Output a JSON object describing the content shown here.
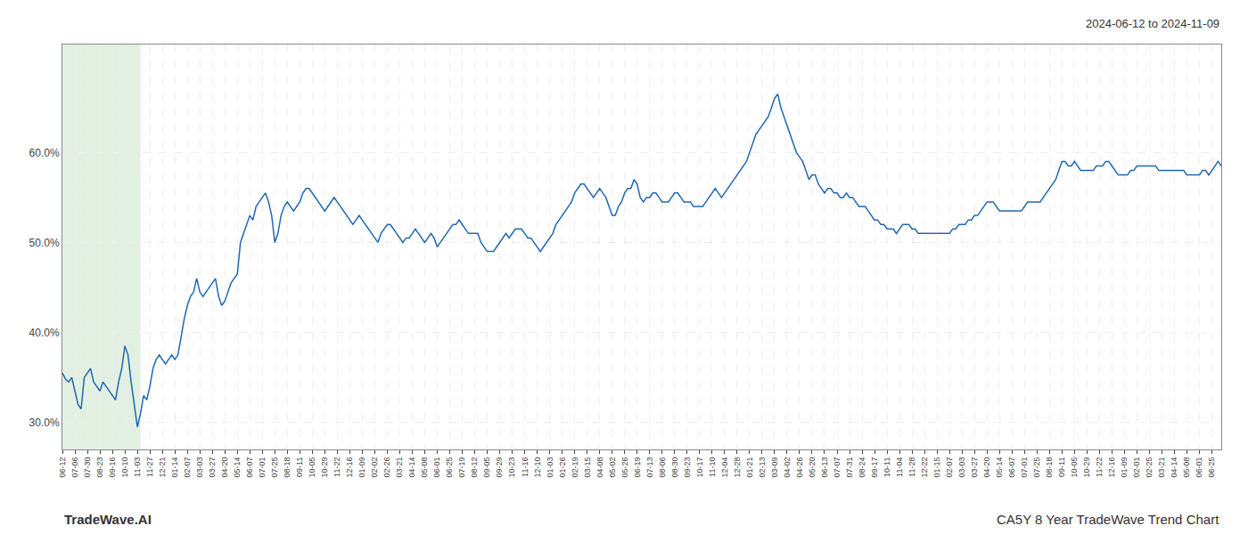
{
  "chart_data": {
    "type": "line",
    "title": "CA5Y 8 Year TradeWave Trend Chart",
    "subtitle": "2024-06-12 to 2024-11-09",
    "annotations": [
      "TradeWave.AI"
    ],
    "color": "#2068b0",
    "grid": true,
    "ylim": [
      0.27,
      0.72
    ],
    "yticks": [
      {
        "value": 0.3,
        "label": "30.0%"
      },
      {
        "value": 0.4,
        "label": "40.0%"
      },
      {
        "value": 0.5,
        "label": "50.0%"
      },
      {
        "value": 0.6,
        "label": "60.0%"
      }
    ],
    "shade": {
      "start": 0,
      "end": 25,
      "color": "#d6ead6"
    },
    "categories": [
      "06-12",
      null,
      null,
      null,
      "07-06",
      null,
      null,
      null,
      "07-30",
      null,
      null,
      null,
      "08-23",
      null,
      null,
      null,
      "09-16",
      null,
      null,
      null,
      "10-10",
      null,
      null,
      null,
      "11-03",
      null,
      null,
      null,
      "11-27",
      null,
      null,
      null,
      "12-21",
      null,
      null,
      null,
      "01-14",
      null,
      null,
      null,
      "02-07",
      null,
      null,
      null,
      "03-03",
      null,
      null,
      null,
      "03-27",
      null,
      null,
      null,
      "04-20",
      null,
      null,
      null,
      "05-14",
      null,
      null,
      null,
      "06-07",
      null,
      null,
      null,
      "07-01",
      null,
      null,
      null,
      "07-25",
      null,
      null,
      null,
      "08-18",
      null,
      null,
      null,
      "09-11",
      null,
      null,
      null,
      "10-05",
      null,
      null,
      null,
      "10-29",
      null,
      null,
      null,
      "11-22",
      null,
      null,
      null,
      "12-16",
      null,
      null,
      null,
      "01-09",
      null,
      null,
      null,
      "02-02",
      null,
      null,
      null,
      "02-26",
      null,
      null,
      null,
      "03-21",
      null,
      null,
      null,
      "04-14",
      null,
      null,
      null,
      "05-08",
      null,
      null,
      null,
      "06-01",
      null,
      null,
      null,
      "06-25",
      null,
      null,
      null,
      "07-19",
      null,
      null,
      null,
      "08-12",
      null,
      null,
      null,
      "09-05",
      null,
      null,
      null,
      "09-29",
      null,
      null,
      null,
      "10-23",
      null,
      null,
      null,
      "11-16",
      null,
      null,
      null,
      "12-10",
      null,
      null,
      null,
      "01-03",
      null,
      null,
      null,
      "01-26",
      null,
      null,
      null,
      "02-19",
      null,
      null,
      null,
      "03-15",
      null,
      null,
      null,
      "04-08",
      null,
      null,
      null,
      "05-02",
      null,
      null,
      null,
      "05-26",
      null,
      null,
      null,
      "06-19",
      null,
      null,
      null,
      "07-13",
      null,
      null,
      null,
      "08-06",
      null,
      null,
      null,
      "08-30",
      null,
      null,
      null,
      "09-23",
      null,
      null,
      null,
      "10-17",
      null,
      null,
      null,
      "11-10",
      null,
      null,
      null,
      "12-04",
      null,
      null,
      null,
      "12-28",
      null,
      null,
      null,
      "01-21",
      null,
      null,
      null,
      "02-13",
      null,
      null,
      null,
      "03-09",
      null,
      null,
      null,
      "04-02",
      null,
      null,
      null,
      "04-26",
      null,
      null,
      null,
      "05-20",
      null,
      null,
      null,
      "06-13",
      null,
      null,
      null,
      "07-07",
      null,
      null,
      null,
      "07-31",
      null,
      null,
      null,
      "08-24",
      null,
      null,
      null,
      "09-17",
      null,
      null,
      null,
      "10-11",
      null,
      null,
      null,
      "11-04",
      null,
      null,
      null,
      "11-28",
      null,
      null,
      null,
      "12-22",
      null,
      null,
      null,
      "01-15",
      null,
      null,
      null,
      "02-07",
      null,
      null,
      null,
      "03-03",
      null,
      null,
      null,
      "03-27",
      null,
      null,
      null,
      "04-20",
      null,
      null,
      null,
      "05-14",
      null,
      null,
      null,
      "06-07",
      null,
      null,
      null,
      "07-01",
      null,
      null,
      null,
      "07-25",
      null,
      null,
      null,
      "08-18",
      null,
      null,
      null,
      "09-11",
      null,
      null,
      null,
      "10-05",
      null,
      null,
      null,
      "10-29",
      null,
      null,
      null,
      "11-22",
      null,
      null,
      null,
      "12-16",
      null,
      null,
      null,
      "01-09",
      null,
      null,
      null,
      "02-01",
      null,
      null,
      null,
      "02-25",
      null,
      null,
      null,
      "03-21",
      null,
      null,
      null,
      "04-14",
      null,
      null,
      null,
      "05-08",
      null,
      null,
      null,
      "06-01",
      null,
      null,
      null,
      "06-25",
      null,
      null,
      null
    ],
    "values": [
      0.355,
      0.348,
      0.345,
      0.35,
      0.335,
      0.32,
      0.315,
      0.35,
      0.355,
      0.36,
      0.345,
      0.34,
      0.335,
      0.345,
      0.34,
      0.335,
      0.33,
      0.325,
      0.345,
      0.36,
      0.385,
      0.375,
      0.345,
      0.32,
      0.295,
      0.31,
      0.33,
      0.325,
      0.34,
      0.36,
      0.37,
      0.375,
      0.37,
      0.365,
      0.37,
      0.375,
      0.37,
      0.375,
      0.395,
      0.415,
      0.43,
      0.44,
      0.445,
      0.46,
      0.445,
      0.44,
      0.445,
      0.45,
      0.455,
      0.46,
      0.44,
      0.43,
      0.435,
      0.445,
      0.455,
      0.46,
      0.465,
      0.5,
      0.51,
      0.52,
      0.53,
      0.525,
      0.54,
      0.545,
      0.55,
      0.555,
      0.545,
      0.53,
      0.5,
      0.51,
      0.53,
      0.54,
      0.545,
      0.54,
      0.535,
      0.54,
      0.545,
      0.555,
      0.56,
      0.56,
      0.555,
      0.55,
      0.545,
      0.54,
      0.535,
      0.54,
      0.545,
      0.55,
      0.545,
      0.54,
      0.535,
      0.53,
      0.525,
      0.52,
      0.525,
      0.53,
      0.525,
      0.52,
      0.515,
      0.51,
      0.505,
      0.5,
      0.51,
      0.515,
      0.52,
      0.52,
      0.515,
      0.51,
      0.505,
      0.5,
      0.505,
      0.505,
      0.51,
      0.515,
      0.51,
      0.505,
      0.5,
      0.505,
      0.51,
      0.505,
      0.495,
      0.5,
      0.505,
      0.51,
      0.515,
      0.52,
      0.52,
      0.525,
      0.52,
      0.515,
      0.51,
      0.51,
      0.51,
      0.51,
      0.5,
      0.495,
      0.49,
      0.49,
      0.49,
      0.495,
      0.5,
      0.505,
      0.51,
      0.505,
      0.51,
      0.515,
      0.515,
      0.515,
      0.51,
      0.505,
      0.505,
      0.5,
      0.495,
      0.49,
      0.495,
      0.5,
      0.505,
      0.51,
      0.52,
      0.525,
      0.53,
      0.535,
      0.54,
      0.545,
      0.555,
      0.56,
      0.565,
      0.565,
      0.56,
      0.555,
      0.55,
      0.555,
      0.56,
      0.555,
      0.55,
      0.54,
      0.53,
      0.53,
      0.54,
      0.545,
      0.555,
      0.56,
      0.56,
      0.57,
      0.565,
      0.55,
      0.545,
      0.55,
      0.55,
      0.555,
      0.555,
      0.55,
      0.545,
      0.545,
      0.545,
      0.55,
      0.555,
      0.555,
      0.55,
      0.545,
      0.545,
      0.545,
      0.54,
      0.54,
      0.54,
      0.54,
      0.545,
      0.55,
      0.555,
      0.56,
      0.555,
      0.55,
      0.555,
      0.56,
      0.565,
      0.57,
      0.575,
      0.58,
      0.585,
      0.59,
      0.6,
      0.61,
      0.62,
      0.625,
      0.63,
      0.635,
      0.64,
      0.65,
      0.66,
      0.665,
      0.65,
      0.64,
      0.63,
      0.62,
      0.61,
      0.6,
      0.595,
      0.59,
      0.58,
      0.57,
      0.575,
      0.575,
      0.565,
      0.56,
      0.555,
      0.56,
      0.56,
      0.555,
      0.555,
      0.55,
      0.55,
      0.555,
      0.55,
      0.55,
      0.545,
      0.54,
      0.54,
      0.54,
      0.535,
      0.53,
      0.525,
      0.525,
      0.52,
      0.52,
      0.515,
      0.515,
      0.515,
      0.51,
      0.515,
      0.52,
      0.52,
      0.52,
      0.515,
      0.515,
      0.51,
      0.51,
      0.51,
      0.51,
      0.51,
      0.51,
      0.51,
      0.51,
      0.51,
      0.51,
      0.51,
      0.515,
      0.515,
      0.52,
      0.52,
      0.52,
      0.525,
      0.525,
      0.53,
      0.53,
      0.535,
      0.54,
      0.545,
      0.545,
      0.545,
      0.54,
      0.535,
      0.535,
      0.535,
      0.535,
      0.535,
      0.535,
      0.535,
      0.535,
      0.54,
      0.545,
      0.545,
      0.545,
      0.545,
      0.545,
      0.55,
      0.555,
      0.56,
      0.565,
      0.57,
      0.58,
      0.59,
      0.59,
      0.585,
      0.585,
      0.59,
      0.585,
      0.58,
      0.58,
      0.58,
      0.58,
      0.58,
      0.585,
      0.585,
      0.585,
      0.59,
      0.59,
      0.585,
      0.58,
      0.575,
      0.575,
      0.575,
      0.575,
      0.58,
      0.58,
      0.585,
      0.585,
      0.585,
      0.585,
      0.585,
      0.585,
      0.585,
      0.58,
      0.58,
      0.58,
      0.58,
      0.58,
      0.58,
      0.58,
      0.58,
      0.58,
      0.575,
      0.575,
      0.575,
      0.575,
      0.575,
      0.58,
      0.58,
      0.575,
      0.58,
      0.585,
      0.59,
      0.585
    ]
  }
}
